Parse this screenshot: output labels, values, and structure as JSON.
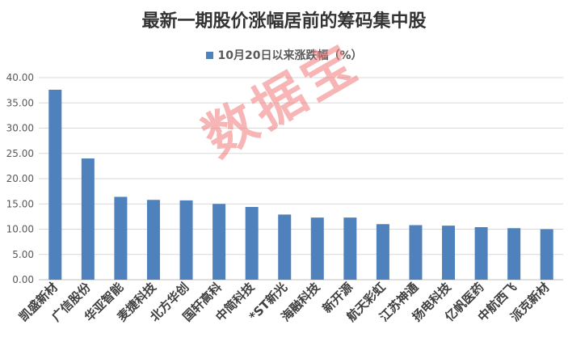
{
  "chart_data": {
    "type": "bar",
    "title": "最新一期股价涨幅居前的筹码集中股",
    "series": [
      {
        "name": "10月20日以来涨跌幅（%）",
        "color": "#4f81bd",
        "values": [
          37.6,
          24.0,
          16.4,
          15.8,
          15.7,
          15.0,
          14.4,
          12.9,
          12.3,
          12.3,
          11.0,
          10.8,
          10.7,
          10.4,
          10.2,
          10.0
        ]
      }
    ],
    "categories": [
      "凯盛新材",
      "广信股份",
      "华亚智能",
      "麦捷科技",
      "北方华创",
      "国轩高科",
      "中简科技",
      "*ST新光",
      "海融科技",
      "新开源",
      "航天彩虹",
      "江苏神通",
      "扬电科技",
      "亿帆医药",
      "中航西飞",
      "派克新材"
    ],
    "ylim": [
      0,
      40
    ],
    "yticks": [
      "0.00",
      "5.00",
      "10.00",
      "15.00",
      "20.00",
      "25.00",
      "30.00",
      "35.00",
      "40.00"
    ],
    "grid": true,
    "legend_position": "top"
  },
  "watermark": "数据宝"
}
